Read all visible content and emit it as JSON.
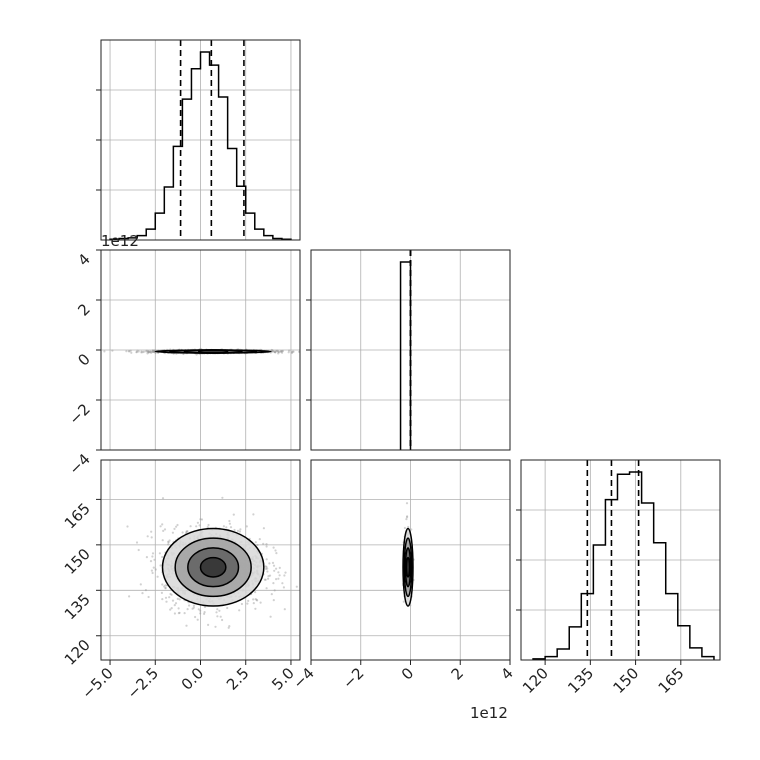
{
  "chart_data": {
    "type": "corner",
    "grid": true,
    "parameters": [
      {
        "range": [
          -5.5,
          5.5
        ],
        "ticks": [
          -5.0,
          -2.5,
          0.0,
          2.5,
          5.0
        ],
        "tick_labels": [
          "−5.0",
          "−2.5",
          "0.0",
          "2.5",
          "5.0"
        ],
        "offset_text": "1e12"
      },
      {
        "range": [
          -4,
          4
        ],
        "ticks": [
          -4,
          -2,
          0,
          2,
          4
        ],
        "tick_labels": [
          "−4",
          "−2",
          "0",
          "2",
          "4"
        ],
        "offset_text": "1e12"
      },
      {
        "range": [
          112,
          178
        ],
        "ticks": [
          120,
          135,
          150,
          165
        ],
        "tick_labels": [
          "120",
          "135",
          "150",
          "165"
        ]
      }
    ],
    "histograms": [
      {
        "param": 0,
        "bins": [
          -5.0,
          -4.5,
          -4.0,
          -3.5,
          -3.0,
          -2.5,
          -2.0,
          -1.5,
          -1.0,
          -0.5,
          0.0,
          0.5,
          1.0,
          1.5,
          2.0,
          2.5,
          3.0,
          3.5,
          4.0,
          4.5,
          5.0
        ],
        "counts": [
          1,
          2,
          3,
          6,
          15,
          37,
          73,
          129,
          194,
          236,
          259,
          241,
          197,
          126,
          74,
          37,
          15,
          6,
          2,
          1
        ],
        "quantiles": [
          -1.1,
          0.6,
          2.4
        ]
      },
      {
        "param": 1,
        "bins": [
          -0.4,
          -0.2,
          0.0
        ],
        "counts": [
          1,
          1
        ],
        "quantiles": [
          0.0,
          0.0,
          0.0
        ]
      },
      {
        "param": 2,
        "bins": [
          116,
          120,
          124,
          128,
          132,
          136,
          140,
          144,
          148,
          152,
          156,
          160,
          164,
          168,
          172,
          176
        ],
        "counts": [
          1,
          3,
          10,
          30,
          60,
          104,
          145,
          168,
          170,
          142,
          106,
          60,
          31,
          11,
          3
        ],
        "quantiles": [
          134,
          142,
          151
        ]
      }
    ],
    "contours": [
      {
        "x_param": 0,
        "y_param": 1,
        "center": [
          0.7,
          -0.06
        ],
        "sigma": [
          1.6,
          0.03
        ],
        "levels": [
          0.5,
          1.0,
          1.5,
          2.0
        ]
      },
      {
        "x_param": 0,
        "y_param": 2,
        "center": [
          0.7,
          142.6
        ],
        "sigma": [
          1.4,
          6.4
        ],
        "levels": [
          0.5,
          1.0,
          1.5,
          2.0
        ]
      },
      {
        "x_param": 1,
        "y_param": 2,
        "center": [
          -0.1,
          142.6
        ],
        "sigma": [
          0.1,
          6.4
        ],
        "levels": [
          0.5,
          1.0,
          1.5,
          2.0
        ]
      }
    ]
  }
}
